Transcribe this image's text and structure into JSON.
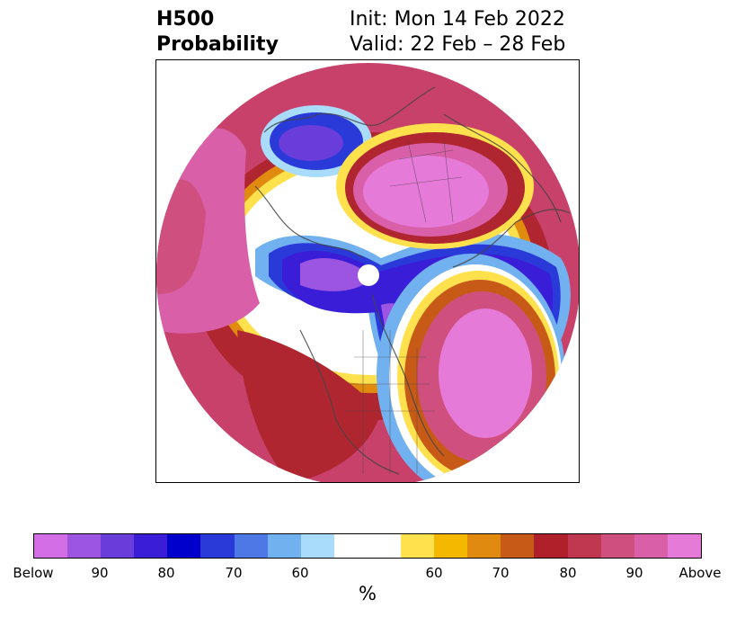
{
  "header": {
    "variable": "H500",
    "product": "Probability",
    "init": "Init: Mon 14 Feb 2022",
    "valid": "Valid: 22 Feb – 28 Feb"
  },
  "colorbar": {
    "unit": "%",
    "below_colors": [
      "#d46ee6",
      "#9b55e0",
      "#6a3ddb",
      "#3a1dd6",
      "#0000cc",
      "#2a3ad9",
      "#4d78e6",
      "#72b1f0",
      "#a9dcfa"
    ],
    "neutral_color": "#ffffff",
    "above_colors": [
      "#ffe04d",
      "#f5b800",
      "#e08a10",
      "#c85a18",
      "#b0202a",
      "#c0384f",
      "#cf4f7f",
      "#d95fa8",
      "#e67ad8"
    ],
    "tick_labels": [
      "Below",
      "90",
      "80",
      "70",
      "60",
      "",
      "60",
      "70",
      "80",
      "90",
      "Above"
    ]
  },
  "map": {
    "projection": "north-polar-stereographic",
    "features": [
      "coastlines",
      "country borders",
      "US state borders",
      "Canadian province borders"
    ]
  }
}
